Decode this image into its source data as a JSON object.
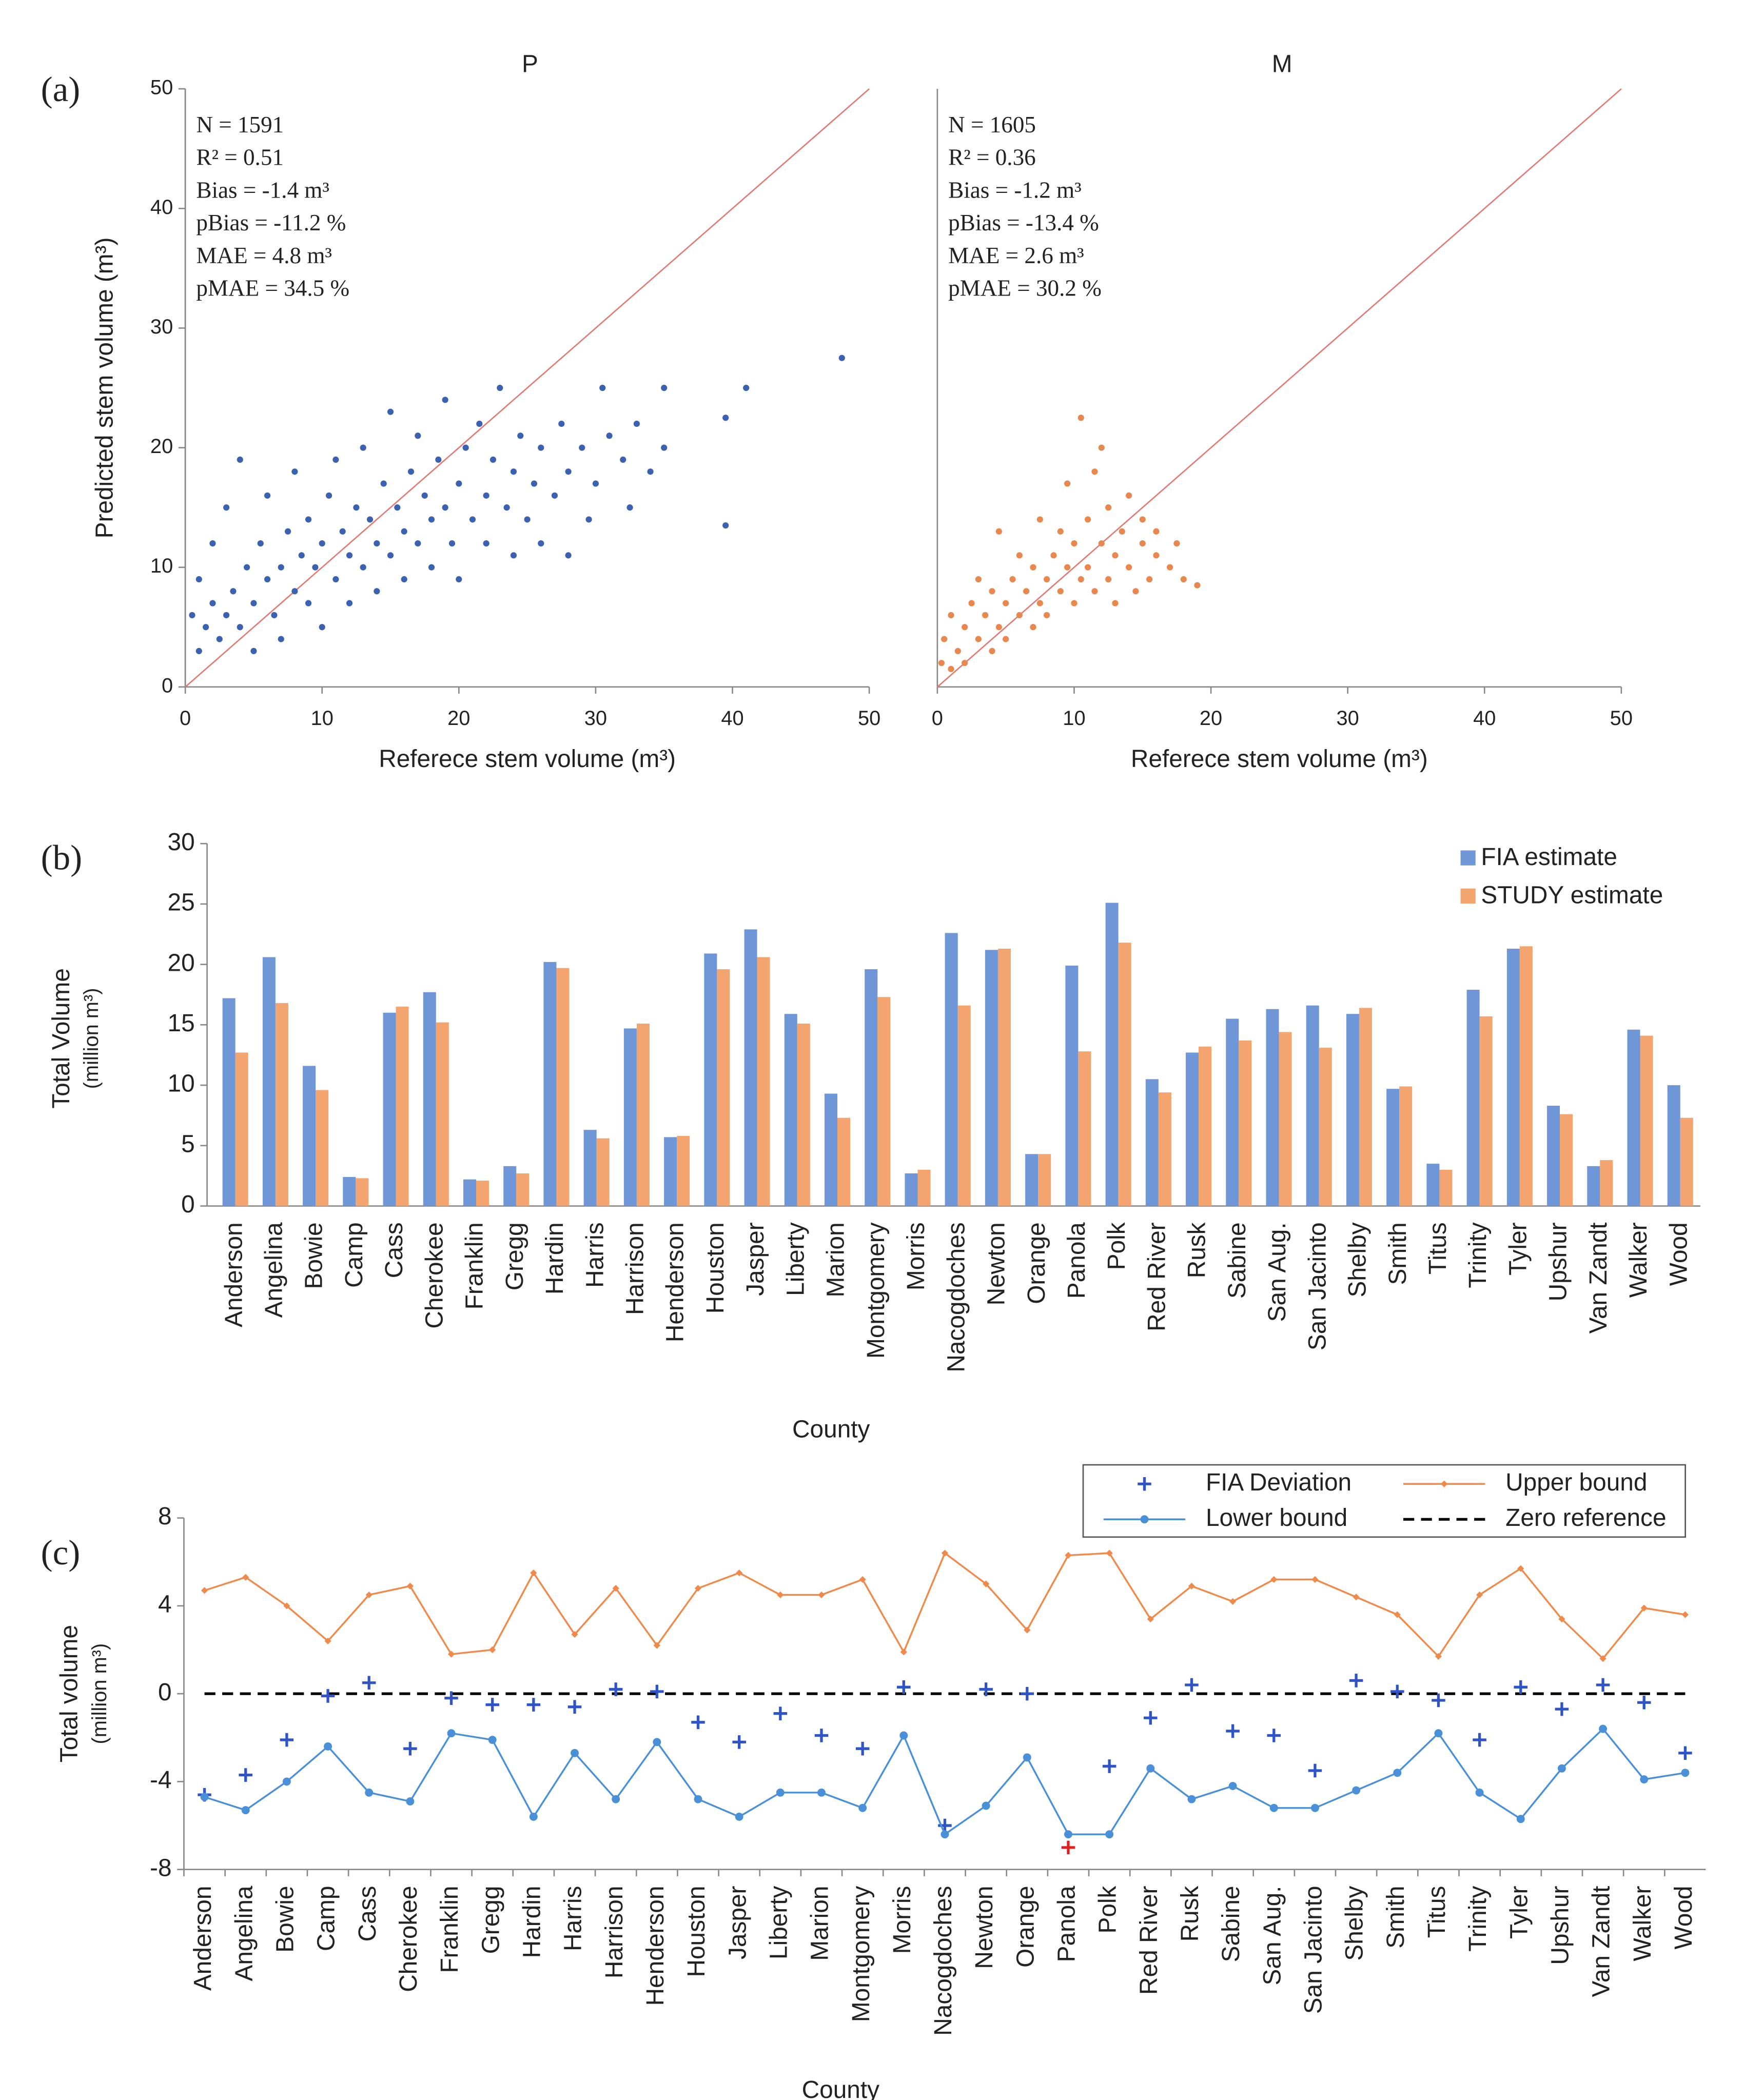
{
  "chart_data": [
    {
      "type": "scatter",
      "panel_label": "(a)",
      "title": "P",
      "annotations": [
        "N = 1591",
        "R² = 0.51",
        "Bias = -1.4 m³",
        "pBias = -11.2 %",
        "MAE = 4.8 m³",
        "pMAE = 34.5 %"
      ],
      "xlabel": "Referece stem volume (m³)",
      "ylabel": "Predicted stem volume (m³)",
      "xlim": [
        0,
        50
      ],
      "ylim": [
        0,
        50
      ],
      "xticks": [
        0,
        10,
        20,
        30,
        40,
        50
      ],
      "yticks": [
        0,
        10,
        20,
        30,
        40,
        50
      ],
      "color": "#3a62b0",
      "identity_line_color": "#e07a72",
      "x": [
        0.5,
        1,
        1,
        1.5,
        2,
        2,
        2.5,
        3,
        3,
        3.5,
        4,
        4,
        4.5,
        5,
        5,
        5.5,
        6,
        6,
        6.5,
        7,
        7,
        7.5,
        8,
        8,
        8.5,
        9,
        9,
        9.5,
        10,
        10,
        10.5,
        11,
        11,
        11.5,
        12,
        12,
        12.5,
        13,
        13,
        13.5,
        14,
        14,
        14.5,
        15,
        15,
        15.5,
        16,
        16,
        16.5,
        17,
        17,
        17.5,
        18,
        18,
        18.5,
        19,
        19,
        19.5,
        20,
        20,
        20.5,
        21,
        21.5,
        22,
        22,
        22.5,
        23,
        23.5,
        24,
        24,
        24.5,
        25,
        25.5,
        26,
        26,
        27,
        27.5,
        28,
        28,
        29,
        29.5,
        30,
        30.5,
        31,
        32,
        32.5,
        33,
        34,
        35,
        35,
        39.5,
        39.5,
        41,
        48
      ],
      "values": [
        6,
        3,
        9,
        5,
        7,
        12,
        4,
        6,
        15,
        8,
        5,
        19,
        10,
        7,
        3,
        12,
        9,
        16,
        6,
        10,
        4,
        13,
        8,
        18,
        11,
        7,
        14,
        10,
        12,
        5,
        16,
        9,
        19,
        13,
        11,
        7,
        15,
        10,
        20,
        14,
        12,
        8,
        17,
        11,
        23,
        15,
        13,
        9,
        18,
        12,
        21,
        16,
        14,
        10,
        19,
        15,
        24,
        12,
        17,
        9,
        20,
        14,
        22,
        16,
        12,
        19,
        25,
        15,
        18,
        11,
        21,
        14,
        17,
        20,
        12,
        16,
        22,
        18,
        11,
        20,
        14,
        17,
        25,
        21,
        19,
        15,
        22,
        18,
        25,
        20,
        13.5,
        22.5,
        25,
        27.5
      ]
    },
    {
      "type": "scatter",
      "title": "M",
      "annotations": [
        "N = 1605",
        "R² = 0.36",
        "Bias = -1.2 m³",
        "pBias = -13.4 %",
        "MAE = 2.6 m³",
        "pMAE = 30.2 %"
      ],
      "xlabel": "Referece stem volume (m³)",
      "xlim": [
        0,
        50
      ],
      "ylim": [
        0,
        50
      ],
      "xticks": [
        0,
        10,
        20,
        30,
        40,
        50
      ],
      "color": "#e8874e",
      "identity_line_color": "#e07a72",
      "x": [
        0.3,
        0.5,
        1,
        1,
        1.5,
        2,
        2,
        2.5,
        3,
        3,
        3.5,
        4,
        4,
        4.5,
        4.5,
        5,
        5,
        5.5,
        6,
        6,
        6.5,
        7,
        7,
        7.5,
        7.5,
        8,
        8,
        8.5,
        9,
        9,
        9.5,
        9.5,
        10,
        10,
        10.5,
        10.5,
        11,
        11,
        11.5,
        11.5,
        12,
        12,
        12.5,
        12.5,
        13,
        13,
        13.5,
        14,
        14,
        14.5,
        15,
        15,
        15.5,
        16,
        16,
        17,
        17.5,
        18,
        19
      ],
      "values": [
        2,
        4,
        1.5,
        6,
        3,
        5,
        2,
        7,
        4,
        9,
        6,
        3,
        8,
        5,
        13,
        7,
        4,
        9,
        6,
        11,
        8,
        5,
        10,
        7,
        14,
        9,
        6,
        11,
        8,
        13,
        10,
        17,
        7,
        12,
        9,
        22.5,
        14,
        10,
        18,
        8,
        12,
        20,
        9,
        15,
        11,
        7,
        13,
        10,
        16,
        8,
        12,
        14,
        9,
        11,
        13,
        10,
        12,
        9,
        8.5
      ]
    },
    {
      "type": "bar",
      "panel_label": "(b)",
      "xlabel": "County",
      "ylabel": [
        "Total Volume",
        "(million m³)"
      ],
      "ylim": [
        0,
        30
      ],
      "yticks": [
        0,
        5,
        10,
        15,
        20,
        25,
        30
      ],
      "legend": "top-right",
      "categories": [
        "Anderson",
        "Angelina",
        "Bowie",
        "Camp",
        "Cass",
        "Cherokee",
        "Franklin",
        "Gregg",
        "Hardin",
        "Harris",
        "Harrison",
        "Henderson",
        "Houston",
        "Jasper",
        "Liberty",
        "Marion",
        "Montgomery",
        "Morris",
        "Nacogdoches",
        "Newton",
        "Orange",
        "Panola",
        "Polk",
        "Red River",
        "Rusk",
        "Sabine",
        "San Aug.",
        "San Jacinto",
        "Shelby",
        "Smith",
        "Titus",
        "Trinity",
        "Tyler",
        "Upshur",
        "Van Zandt",
        "Walker",
        "Wood"
      ],
      "series": [
        {
          "name": "FIA estimate",
          "color": "#6f97d8",
          "values": [
            17.2,
            20.6,
            11.6,
            2.4,
            16,
            17.7,
            2.2,
            3.3,
            20.2,
            6.3,
            14.7,
            5.7,
            20.9,
            22.9,
            15.9,
            9.3,
            19.6,
            2.7,
            22.6,
            21.2,
            4.3,
            19.9,
            25.1,
            10.5,
            12.7,
            15.5,
            16.3,
            16.6,
            15.9,
            9.7,
            3.5,
            17.9,
            21.3,
            8.3,
            3.3,
            14.6,
            10
          ]
        },
        {
          "name": "STUDY estimate",
          "color": "#f4a46e",
          "values": [
            12.7,
            16.8,
            9.6,
            2.3,
            16.5,
            15.2,
            2.1,
            2.7,
            19.7,
            5.6,
            15.1,
            5.8,
            19.6,
            20.6,
            15.1,
            7.3,
            17.3,
            3,
            16.6,
            21.3,
            4.3,
            12.8,
            21.8,
            9.4,
            13.2,
            13.7,
            14.4,
            13.1,
            16.4,
            9.9,
            3,
            15.7,
            21.5,
            7.6,
            3.8,
            14.1,
            7.3
          ]
        }
      ]
    },
    {
      "type": "line",
      "panel_label": "(c)",
      "xlabel": "County",
      "ylabel": [
        "Total volume",
        "(million m³)"
      ],
      "ylim": [
        -8,
        8
      ],
      "yticks": [
        -8,
        -4,
        0,
        4,
        8
      ],
      "legend": "top-right",
      "categories": [
        "Anderson",
        "Angelina",
        "Bowie",
        "Camp",
        "Cass",
        "Cherokee",
        "Franklin",
        "Gregg",
        "Hardin",
        "Harris",
        "Harrison",
        "Henderson",
        "Houston",
        "Jasper",
        "Liberty",
        "Marion",
        "Montgomery",
        "Morris",
        "Nacogdoches",
        "Newton",
        "Orange",
        "Panola",
        "Polk",
        "Red River",
        "Rusk",
        "Sabine",
        "San Aug.",
        "San Jacinto",
        "Shelby",
        "Smith",
        "Titus",
        "Trinity",
        "Tyler",
        "Upshur",
        "Van Zandt",
        "Walker",
        "Wood"
      ],
      "series": [
        {
          "name": "FIA Deviation",
          "marker": "plus",
          "color": "#2f54c8",
          "highlight_index": 21,
          "highlight_color": "#e02020",
          "values": [
            -4.6,
            -3.7,
            -2.1,
            -0.1,
            0.5,
            -2.5,
            -0.2,
            -0.5,
            -0.5,
            -0.6,
            0.2,
            0.1,
            -1.3,
            -2.2,
            -0.9,
            -1.9,
            -2.5,
            0.3,
            -6,
            0.2,
            0,
            -7,
            -3.3,
            -1.1,
            0.4,
            -1.7,
            -1.9,
            -3.5,
            0.6,
            0.1,
            -0.3,
            -2.1,
            0.3,
            -0.7,
            0.4,
            -0.4,
            -2.7
          ]
        },
        {
          "name": "Upper bound",
          "marker": "diamond",
          "color": "#f08a4b",
          "values": [
            4.7,
            5.3,
            4,
            2.4,
            4.5,
            4.9,
            1.8,
            2,
            5.5,
            2.7,
            4.8,
            2.2,
            4.8,
            5.5,
            4.5,
            4.5,
            5.2,
            1.9,
            6.4,
            5,
            2.9,
            6.3,
            6.4,
            3.4,
            4.9,
            4.2,
            5.2,
            5.2,
            4.4,
            3.6,
            1.7,
            4.5,
            5.7,
            3.4,
            1.6,
            3.9,
            3.6
          ]
        },
        {
          "name": "Lower bound",
          "marker": "circle",
          "color": "#4a90d9",
          "values": [
            -4.7,
            -5.3,
            -4,
            -2.4,
            -4.5,
            -4.9,
            -1.8,
            -2.1,
            -5.6,
            -2.7,
            -4.8,
            -2.2,
            -4.8,
            -5.6,
            -4.5,
            -4.5,
            -5.2,
            -1.9,
            -6.4,
            -5.1,
            -2.9,
            -6.4,
            -6.4,
            -3.4,
            -4.8,
            -4.2,
            -5.2,
            -5.2,
            -4.4,
            -3.6,
            -1.8,
            -4.5,
            -5.7,
            -3.4,
            -1.6,
            -3.9,
            -3.6
          ]
        }
      ],
      "reference_lines": [
        {
          "name": "Zero reference",
          "value": 0,
          "color": "#000000",
          "style": "dashed"
        }
      ]
    }
  ]
}
